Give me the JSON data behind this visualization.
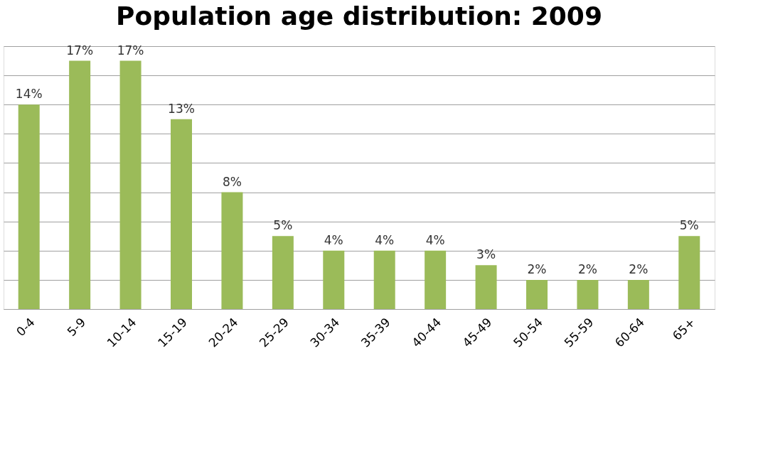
{
  "chart_data": {
    "type": "bar",
    "title": "Population age distribution: 2009",
    "categories": [
      "0-4",
      "5-9",
      "10-14",
      "15-19",
      "20-24",
      "25-29",
      "30-34",
      "35-39",
      "40-44",
      "45-49",
      "50-54",
      "55-59",
      "60-64",
      "65+"
    ],
    "values": [
      14,
      17,
      17,
      13,
      8,
      5,
      4,
      4,
      4,
      3,
      2,
      2,
      2,
      5
    ],
    "value_labels": [
      "14%",
      "17%",
      "17%",
      "13%",
      "8%",
      "5%",
      "4%",
      "4%",
      "4%",
      "3%",
      "2%",
      "2%",
      "2%",
      "5%"
    ],
    "color": "#9bbb59",
    "ylim": [
      0,
      18
    ],
    "yticks": [
      {
        "value": 0,
        "label": null
      },
      {
        "value": 2,
        "label": null
      },
      {
        "value": 4,
        "label": null
      },
      {
        "value": 6,
        "label": null
      },
      {
        "value": 8,
        "label": null
      },
      {
        "value": 10,
        "label": null
      },
      {
        "value": 12,
        "label": null
      },
      {
        "value": 14,
        "label": null
      },
      {
        "value": 16,
        "label": null
      },
      {
        "value": 18,
        "label": null
      }
    ],
    "grid": "y",
    "tick_labels": "x"
  }
}
